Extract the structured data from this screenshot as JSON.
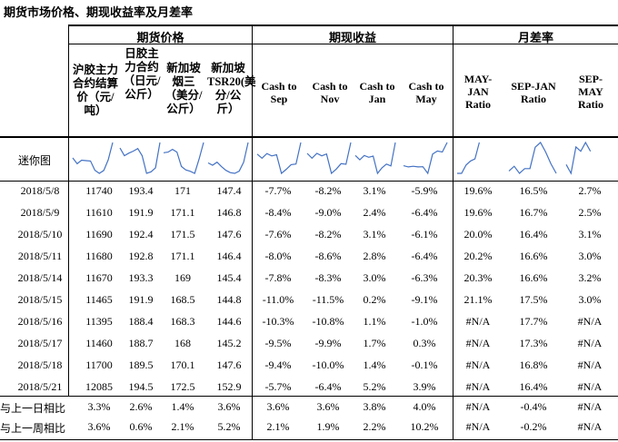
{
  "title": "期货市场价格、期现收益率及月差率",
  "groups": [
    "期货价格",
    "期现收益",
    "月差率"
  ],
  "columns": [
    {
      "label": "沪胶主力合约结算价（元/吨）"
    },
    {
      "label": "日胶主力合约（日元/公斤）"
    },
    {
      "label": "新加坡烟三（美分/公斤）"
    },
    {
      "label": "新加坡TSR20(美分/公斤）"
    },
    {
      "label": "Cash to Sep"
    },
    {
      "label": "Cash to Nov"
    },
    {
      "label": "Cash to Jan"
    },
    {
      "label": "Cash to May"
    },
    {
      "label": "MAY-JAN Ratio"
    },
    {
      "label": "SEP-JAN Ratio"
    },
    {
      "label": "SEP-MAY Ratio"
    }
  ],
  "sparkline_label": "迷你图",
  "rows": [
    {
      "date": "2018/5/8",
      "values": [
        "11740",
        "193.4",
        "171",
        "147.4",
        "-7.7%",
        "-8.2%",
        "3.1%",
        "-5.9%",
        "19.6%",
        "16.5%",
        "2.7%"
      ]
    },
    {
      "date": "2018/5/9",
      "values": [
        "11610",
        "191.9",
        "171.1",
        "146.8",
        "-8.4%",
        "-9.0%",
        "2.4%",
        "-6.4%",
        "19.6%",
        "16.7%",
        "2.5%"
      ]
    },
    {
      "date": "2018/5/10",
      "values": [
        "11690",
        "192.4",
        "171.5",
        "147.6",
        "-7.6%",
        "-8.2%",
        "3.1%",
        "-6.1%",
        "20.0%",
        "16.4%",
        "3.1%"
      ]
    },
    {
      "date": "2018/5/11",
      "values": [
        "11680",
        "192.8",
        "171.1",
        "146.4",
        "-8.0%",
        "-8.6%",
        "2.8%",
        "-6.4%",
        "20.2%",
        "16.6%",
        "3.0%"
      ]
    },
    {
      "date": "2018/5/14",
      "values": [
        "11670",
        "193.3",
        "169",
        "145.4",
        "-7.8%",
        "-8.3%",
        "3.0%",
        "-6.3%",
        "20.3%",
        "16.6%",
        "3.2%"
      ]
    },
    {
      "date": "2018/5/15",
      "values": [
        "11465",
        "191.9",
        "168.5",
        "144.8",
        "-11.0%",
        "-11.5%",
        "0.2%",
        "-9.1%",
        "21.1%",
        "17.5%",
        "3.0%"
      ]
    },
    {
      "date": "2018/5/16",
      "values": [
        "11395",
        "188.4",
        "168.3",
        "144.6",
        "-10.3%",
        "-10.8%",
        "1.1%",
        "-1.0%",
        "#N/A",
        "17.7%",
        "#N/A"
      ]
    },
    {
      "date": "2018/5/17",
      "values": [
        "11460",
        "188.7",
        "168",
        "145.2",
        "-9.5%",
        "-9.9%",
        "1.7%",
        "0.3%",
        "#N/A",
        "17.3%",
        "#N/A"
      ]
    },
    {
      "date": "2018/5/18",
      "values": [
        "11700",
        "189.5",
        "170.1",
        "147.6",
        "-9.4%",
        "-10.0%",
        "1.4%",
        "-0.1%",
        "#N/A",
        "16.8%",
        "#N/A"
      ]
    },
    {
      "date": "2018/5/21",
      "values": [
        "12085",
        "194.5",
        "172.5",
        "152.9",
        "-5.7%",
        "-6.4%",
        "5.2%",
        "3.9%",
        "#N/A",
        "16.4%",
        "#N/A"
      ]
    }
  ],
  "summary": [
    {
      "label": "与上一日相比",
      "values": [
        "3.3%",
        "2.6%",
        "1.4%",
        "3.6%",
        "3.6%",
        "3.6%",
        "3.8%",
        "4.0%",
        "#N/A",
        "-0.4%",
        "#N/A"
      ]
    },
    {
      "label": "与上一周相比",
      "values": [
        "3.6%",
        "0.6%",
        "2.1%",
        "5.2%",
        "2.1%",
        "1.9%",
        "2.2%",
        "10.2%",
        "#N/A",
        "-0.2%",
        "#N/A"
      ]
    }
  ],
  "colors": {
    "sparkline": "#4472c4",
    "rule": "#000000"
  }
}
